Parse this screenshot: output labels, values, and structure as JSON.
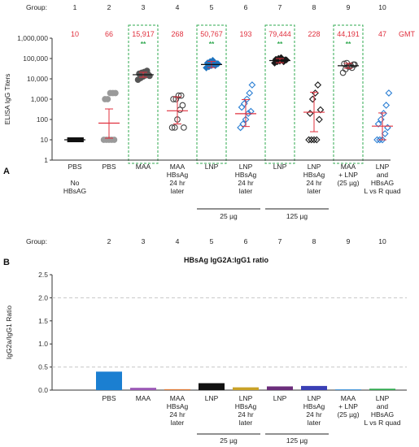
{
  "chart_data": [
    {
      "panel_label": "A",
      "type": "scatter",
      "ylabel": "ELISA IgG Titers",
      "yscale": "log",
      "ylim": [
        1,
        1000000
      ],
      "yticks": [
        "1,000,000",
        "100,000",
        "10,000",
        "1,000",
        "100",
        "10",
        "1"
      ],
      "group_label": "Group:",
      "groups": [
        "1",
        "2",
        "3",
        "4",
        "5",
        "6",
        "7",
        "8",
        "9",
        "10"
      ],
      "gmt_label": "GMT",
      "gmt": [
        "10",
        "66",
        "15,917",
        "268",
        "50,767",
        "193",
        "79,444",
        "228",
        "44,191",
        "47"
      ],
      "gmt_values": [
        10,
        66,
        15917,
        268,
        50767,
        193,
        79444,
        228,
        44191,
        47
      ],
      "err_low": [
        10,
        12,
        12000,
        60,
        36000,
        45,
        62000,
        25,
        33000,
        10
      ],
      "err_high": [
        10,
        330,
        21000,
        1300,
        72000,
        950,
        100000,
        2200,
        58000,
        210
      ],
      "points": [
        [
          10,
          10,
          10,
          10,
          10,
          10,
          10,
          10,
          10,
          10
        ],
        [
          10,
          10,
          10,
          10,
          10,
          1000,
          1000,
          2000,
          2000,
          2000
        ],
        [
          9000,
          11000,
          13000,
          15000,
          16000,
          18000,
          20000,
          22000,
          25000,
          14000
        ],
        [
          40,
          40,
          100,
          300,
          500,
          1000,
          1000,
          1500,
          1500,
          40
        ],
        [
          35000,
          40000,
          45000,
          50000,
          55000,
          60000,
          70000,
          80000,
          45000,
          55000
        ],
        [
          40,
          60,
          100,
          200,
          250,
          400,
          600,
          1000,
          2000,
          5000
        ],
        [
          60000,
          70000,
          75000,
          80000,
          85000,
          90000,
          100000,
          110000,
          70000,
          85000
        ],
        [
          10,
          10,
          10,
          10,
          100,
          200,
          1000,
          2000,
          5000,
          300
        ],
        [
          20000,
          30000,
          40000,
          45000,
          50000,
          55000,
          60000,
          40000,
          35000,
          50000
        ],
        [
          10,
          10,
          10,
          20,
          40,
          60,
          100,
          200,
          500,
          2000
        ]
      ],
      "significance": [
        {
          "group": "3",
          "text": "**"
        },
        {
          "group": "5",
          "text": "**"
        },
        {
          "group": "7",
          "text": "**"
        },
        {
          "group": "9",
          "text": "**"
        }
      ],
      "category_labels": [
        "PBS\n\nNo\nHBsAG",
        "PBS",
        "MAA",
        "MAA\nHBsAg\n24 hr\nlater",
        "LNP",
        "LNP\nHBsAg\n24 hr\nlater",
        "LNP",
        "LNP\nHBsAg\n24 hr\nlater",
        "MAA\n+ LNP\n(25 µg)",
        "LNP\nand\nHBsAG\nL vs R quad"
      ],
      "dose_brackets": [
        {
          "label": "25 µg",
          "from": "5",
          "to": "6"
        },
        {
          "label": "125 µg",
          "from": "7",
          "to": "8"
        }
      ],
      "colors": {
        "gmt": "#e0303e",
        "significance": "#2fa84f",
        "box": "#2fa84f",
        "pbs": "#111111",
        "pbs_gray": "#9a9a9a",
        "maa": "#555555",
        "lnp": "#1e73be",
        "lnp_hbsag": "#2b7fd4",
        "dark": "#1a1a1a",
        "open": "#444444"
      }
    },
    {
      "panel_label": "B",
      "type": "bar",
      "title": "HBsAg IgG2A:IgG1 ratio",
      "ylabel": "IgG2a/IgG1 Ratio",
      "ylim": [
        0,
        2.5
      ],
      "yticks": [
        "2.5",
        "2.0",
        "1.5",
        "1.0",
        "0.5",
        "0.0"
      ],
      "ref_lines": [
        0.5,
        2.0
      ],
      "group_label": "Group:",
      "groups": [
        "2",
        "3",
        "4",
        "5",
        "6",
        "7",
        "8",
        "9",
        "10"
      ],
      "categories": [
        "PBS",
        "MAA",
        "MAA\nHBsAg\n24 hr\nlater",
        "LNP",
        "LNP\nHBsAg\n24 hr\nlater",
        "LNP",
        "LNP\nHBsAg\n24 hr\nlater",
        "MAA\n+ LNP\n(25 µg)",
        "LNP\nand\nHBsAG\nL vs R quad"
      ],
      "values": [
        0.4,
        0.05,
        0.02,
        0.15,
        0.06,
        0.08,
        0.09,
        0.0,
        0.03
      ],
      "colors": [
        "#1b7fd1",
        "#9b59b6",
        "#e07b39",
        "#111111",
        "#c9a227",
        "#6b2d7b",
        "#3a3fb5",
        "#1b7fd1",
        "#2fa84f"
      ],
      "dose_brackets": [
        {
          "label": "25 µg",
          "from": "5",
          "to": "6"
        },
        {
          "label": "125 µg",
          "from": "7",
          "to": "8"
        }
      ]
    }
  ]
}
